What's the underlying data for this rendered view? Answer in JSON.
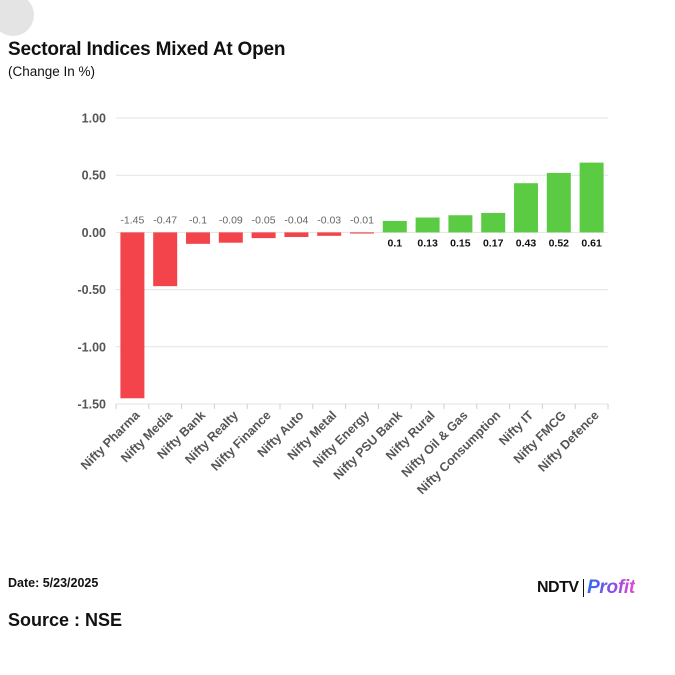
{
  "header": {
    "title": "Sectoral Indices Mixed At Open",
    "subtitle": "(Change In %)"
  },
  "footer": {
    "date_label": "Date: 5/23/2025",
    "source_label": "Source : NSE",
    "logo": {
      "brand": "NDTV",
      "product": "Profit"
    }
  },
  "colors": {
    "negative": "#f2444a",
    "positive": "#5ccb44",
    "grid": "#e3e3e3",
    "axis_text": "#555555"
  },
  "chart_data": {
    "type": "bar",
    "title": "Sectoral Indices Mixed At Open",
    "ylabel": "Change In %",
    "xlabel": "",
    "ylim": [
      -1.5,
      1.0
    ],
    "yticks": [
      1.0,
      0.5,
      0.0,
      -0.5,
      -1.0,
      -1.5
    ],
    "ytick_labels": [
      "1.00",
      "0.50",
      "0.00",
      "-0.50",
      "-1.00",
      "-1.50"
    ],
    "grid": true,
    "categories": [
      "Nifty Pharma",
      "Nifty Media",
      "Nifty Bank",
      "Nifty Realty",
      "Nifty Finance",
      "Nifty Auto",
      "Nifty Metal",
      "Nifty Energy",
      "Nifty PSU Bank",
      "Nifty Rural",
      "Nifty Oil & Gas",
      "Nifty Consumption",
      "Nifty IT",
      "Nifty FMCG",
      "Nifty Defence"
    ],
    "values": [
      -1.45,
      -0.47,
      -0.1,
      -0.09,
      -0.05,
      -0.04,
      -0.03,
      -0.01,
      0.1,
      0.13,
      0.15,
      0.17,
      0.43,
      0.52,
      0.61
    ],
    "data_labels": [
      "-1.45",
      "-0.47",
      "-0.1",
      "-0.09",
      "-0.05",
      "-0.04",
      "-0.03",
      "-0.01",
      "0.1",
      "0.13",
      "0.15",
      "0.17",
      "0.43",
      "0.52",
      "0.61"
    ]
  }
}
